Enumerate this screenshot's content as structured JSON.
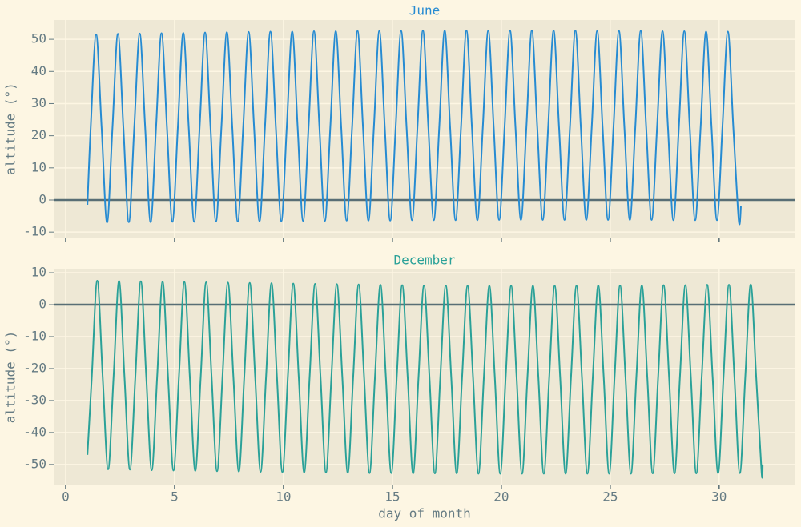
{
  "chart_data": [
    {
      "type": "line",
      "title": "June",
      "title_color": "#268bd2",
      "ylabel": "altitude (°)",
      "color": "#268bd2",
      "xlim": [
        -0.55,
        33.5
      ],
      "xticks": [
        0,
        5,
        10,
        15,
        20,
        25,
        30
      ],
      "ylim": [
        -11.7,
        56
      ],
      "yticks": [
        -10,
        0,
        10,
        20,
        30,
        40,
        50
      ],
      "grid": true,
      "hline": 0,
      "x": [
        1.0,
        1.15,
        1.4,
        1.65,
        1.9,
        2.15,
        2.4,
        2.65,
        2.9,
        3.15,
        3.4,
        3.65,
        3.9,
        4.15,
        4.4,
        4.65,
        4.9,
        5.15,
        5.4,
        5.65,
        5.9,
        6.15,
        6.4,
        6.65,
        6.9,
        7.15,
        7.4,
        7.65,
        7.9,
        8.15,
        8.4,
        8.65,
        8.9,
        9.15,
        9.4,
        9.65,
        9.9,
        10.15,
        10.4,
        10.65,
        10.9,
        11.15,
        11.4,
        11.65,
        11.9,
        12.15,
        12.4,
        12.65,
        12.9,
        13.15,
        13.4,
        13.65,
        13.9,
        14.15,
        14.4,
        14.65,
        14.9,
        15.15,
        15.4,
        15.65,
        15.9,
        16.15,
        16.4,
        16.65,
        16.9,
        17.15,
        17.4,
        17.65,
        17.9,
        18.15,
        18.4,
        18.65,
        18.9,
        19.15,
        19.4,
        19.65,
        19.9,
        20.15,
        20.4,
        20.65,
        20.9,
        21.15,
        21.4,
        21.65,
        21.9,
        22.15,
        22.4,
        22.65,
        22.9,
        23.15,
        23.4,
        23.65,
        23.9,
        24.15,
        24.4,
        24.65,
        24.9,
        25.15,
        25.4,
        25.65,
        25.9,
        26.15,
        26.4,
        26.65,
        26.9,
        27.15,
        27.4,
        27.65,
        27.9,
        28.15,
        28.4,
        28.65,
        28.9,
        29.15,
        29.4,
        29.65,
        29.9,
        30.15,
        30.4,
        30.65,
        30.9,
        31.0
      ],
      "values": [
        -1.5,
        22.6,
        51.5,
        22.6,
        -7.0,
        22.6,
        51.7,
        22.6,
        -6.9,
        22.6,
        51.8,
        22.6,
        -6.9,
        22.6,
        51.9,
        22.6,
        -6.8,
        22.6,
        52.0,
        22.6,
        -6.8,
        22.6,
        52.1,
        22.6,
        -6.7,
        22.6,
        52.2,
        22.6,
        -6.7,
        22.6,
        52.3,
        22.6,
        -6.6,
        22.6,
        52.4,
        22.6,
        -6.6,
        22.6,
        52.4,
        22.6,
        -6.5,
        22.6,
        52.5,
        22.6,
        -6.5,
        22.6,
        52.5,
        22.6,
        -6.4,
        22.6,
        52.6,
        22.6,
        -6.4,
        22.6,
        52.6,
        22.6,
        -6.4,
        22.6,
        52.6,
        22.6,
        -6.3,
        22.6,
        52.7,
        22.6,
        -6.3,
        22.6,
        52.7,
        22.6,
        -6.3,
        22.6,
        52.7,
        22.6,
        -6.3,
        22.6,
        52.7,
        22.6,
        -6.2,
        22.6,
        52.7,
        22.6,
        -6.2,
        22.6,
        52.7,
        22.6,
        -6.2,
        22.6,
        52.7,
        22.6,
        -6.2,
        22.6,
        52.7,
        22.6,
        -6.2,
        22.6,
        52.6,
        22.6,
        -6.2,
        22.6,
        52.6,
        22.6,
        -6.2,
        22.6,
        52.6,
        22.6,
        -6.2,
        22.6,
        52.5,
        22.6,
        -6.3,
        22.6,
        52.5,
        22.6,
        -6.3,
        22.6,
        52.4,
        22.6,
        -6.3,
        22.6,
        52.4,
        22.6,
        -6.4,
        -2.0
      ]
    },
    {
      "type": "line",
      "title": "December",
      "title_color": "#2aa198",
      "ylabel": "altitude (°)",
      "xlabel": "day of month",
      "color": "#2aa198",
      "xlim": [
        -0.55,
        33.5
      ],
      "xticks": [
        0,
        5,
        10,
        15,
        20,
        25,
        30
      ],
      "ylim": [
        -56.3,
        11
      ],
      "yticks": [
        -50,
        -40,
        -30,
        -20,
        -10,
        0,
        10
      ],
      "grid": true,
      "hline": 0,
      "x": [
        1.0,
        1.2,
        1.45,
        1.7,
        1.95,
        2.2,
        2.45,
        2.7,
        2.95,
        3.2,
        3.45,
        3.7,
        3.95,
        4.2,
        4.45,
        4.7,
        4.95,
        5.2,
        5.45,
        5.7,
        5.95,
        6.2,
        6.45,
        6.7,
        6.95,
        7.2,
        7.45,
        7.7,
        7.95,
        8.2,
        8.45,
        8.7,
        8.95,
        9.2,
        9.45,
        9.7,
        9.95,
        10.2,
        10.45,
        10.7,
        10.95,
        11.2,
        11.45,
        11.7,
        11.95,
        12.2,
        12.45,
        12.7,
        12.95,
        13.2,
        13.45,
        13.7,
        13.95,
        14.2,
        14.45,
        14.7,
        14.95,
        15.2,
        15.45,
        15.7,
        15.95,
        16.2,
        16.45,
        16.7,
        16.95,
        17.2,
        17.45,
        17.7,
        17.95,
        18.2,
        18.45,
        18.7,
        18.95,
        19.2,
        19.45,
        19.7,
        19.95,
        20.2,
        20.45,
        20.7,
        20.95,
        21.2,
        21.45,
        21.7,
        21.95,
        22.2,
        22.45,
        22.7,
        22.95,
        23.2,
        23.45,
        23.7,
        23.95,
        24.2,
        24.45,
        24.7,
        24.95,
        25.2,
        25.45,
        25.7,
        25.95,
        26.2,
        26.45,
        26.7,
        26.95,
        27.2,
        27.45,
        27.7,
        27.95,
        28.2,
        28.45,
        28.7,
        28.95,
        29.2,
        29.45,
        29.7,
        29.95,
        30.2,
        30.45,
        30.7,
        30.95,
        31.2,
        31.45,
        31.7,
        31.95,
        32.0
      ],
      "values": [
        -47,
        -22.6,
        7.5,
        -22.6,
        -51.5,
        -22.6,
        7.4,
        -22.6,
        -51.6,
        -22.6,
        7.3,
        -22.6,
        -51.8,
        -22.6,
        7.2,
        -22.6,
        -51.9,
        -22.6,
        7.1,
        -22.6,
        -52.0,
        -22.6,
        7.0,
        -22.6,
        -52.1,
        -22.6,
        6.9,
        -22.6,
        -52.2,
        -22.6,
        6.8,
        -22.6,
        -52.3,
        -22.6,
        6.7,
        -22.6,
        -52.4,
        -22.6,
        6.6,
        -22.6,
        -52.5,
        -22.6,
        6.5,
        -22.6,
        -52.5,
        -22.6,
        6.4,
        -22.6,
        -52.6,
        -22.6,
        6.3,
        -22.6,
        -52.7,
        -22.6,
        6.2,
        -22.6,
        -52.7,
        -22.6,
        6.1,
        -22.6,
        -52.8,
        -22.6,
        6.0,
        -22.6,
        -52.8,
        -22.6,
        6.0,
        -22.6,
        -52.8,
        -22.6,
        5.9,
        -22.6,
        -52.9,
        -22.6,
        5.9,
        -22.6,
        -52.9,
        -22.6,
        5.9,
        -22.6,
        -52.9,
        -22.6,
        5.9,
        -22.6,
        -52.9,
        -22.6,
        5.9,
        -22.6,
        -52.9,
        -22.6,
        5.9,
        -22.6,
        -52.9,
        -22.6,
        6.0,
        -22.6,
        -52.9,
        -22.6,
        6.0,
        -22.6,
        -52.9,
        -22.6,
        6.0,
        -22.6,
        -52.8,
        -22.6,
        6.1,
        -22.6,
        -52.8,
        -22.6,
        6.1,
        -22.6,
        -52.8,
        -22.6,
        6.2,
        -22.6,
        -52.7,
        -22.6,
        6.2,
        -22.6,
        -52.7,
        -22.6,
        6.3,
        -22.6,
        -52.6,
        -50
      ]
    }
  ]
}
